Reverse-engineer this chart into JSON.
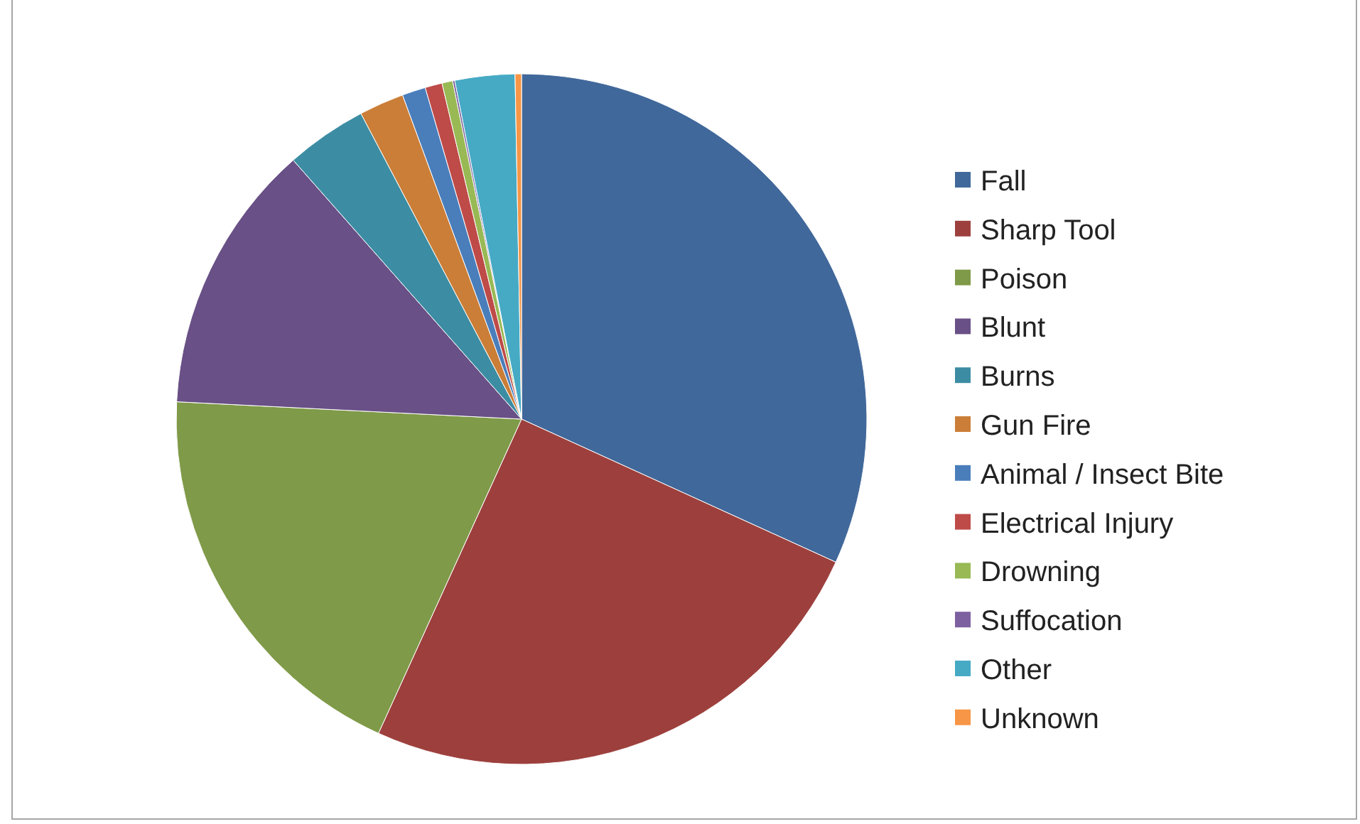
{
  "chart_data": {
    "type": "pie",
    "categories": [
      "Fall",
      "Sharp Tool",
      "Poison",
      "Blunt",
      "Burns",
      "Gun Fire",
      "Animal / Insect Bite",
      "Electrical Injury",
      "Drowning",
      "Suffocation",
      "Other",
      "Unknown"
    ],
    "values": [
      31.8,
      25.0,
      19.0,
      12.7,
      3.8,
      2.1,
      1.1,
      0.8,
      0.5,
      0.1,
      2.8,
      0.3
    ],
    "colors": [
      "#41689a",
      "#9d403d",
      "#7f9a48",
      "#695086",
      "#3c8da3",
      "#cb7e37",
      "#4a7ebb",
      "#be4b48",
      "#98b954",
      "#7d60a0",
      "#46aac5",
      "#f79646"
    ],
    "legend": "right"
  }
}
